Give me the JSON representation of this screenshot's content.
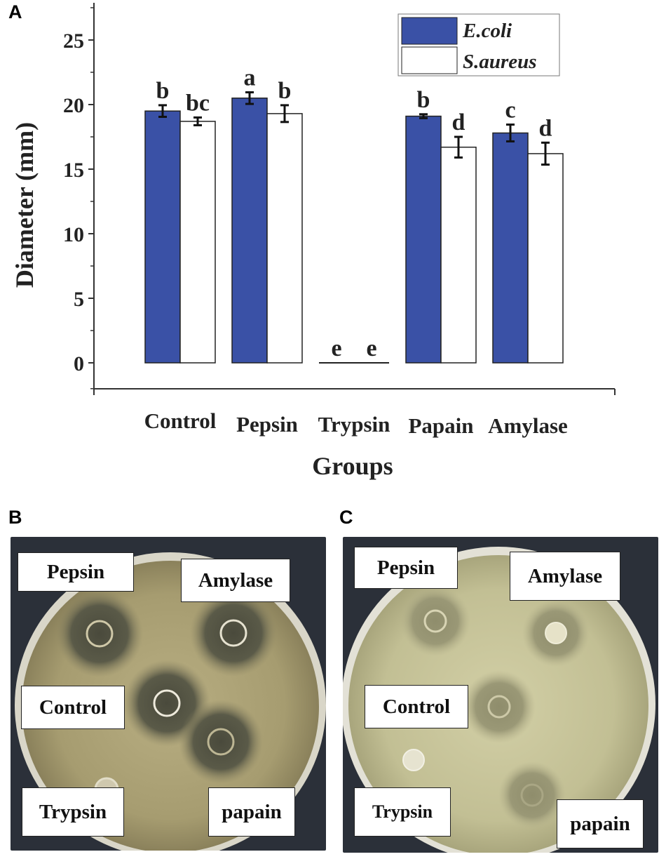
{
  "panels": {
    "a": "A",
    "b": "B",
    "c": "C"
  },
  "chart_data": {
    "type": "bar",
    "title": "",
    "xlabel": "Groups",
    "ylabel": "Diameter (mm)",
    "ylim": [
      -2,
      30
    ],
    "yticks": [
      0,
      5,
      10,
      15,
      20,
      25
    ],
    "grid": false,
    "legend_position": "top-right",
    "categories": [
      "Control",
      "Pepsin",
      "Trypsin",
      "Papain",
      "Amylase"
    ],
    "series": [
      {
        "name": "E.coli",
        "color": "#3a51a6",
        "values": [
          19.5,
          20.5,
          0,
          19.1,
          17.8
        ],
        "errors": [
          0.45,
          0.45,
          0,
          0.15,
          0.65
        ],
        "letters": [
          "b",
          "a",
          "e",
          "b",
          "c"
        ]
      },
      {
        "name": "S.aureus",
        "color": "#ffffff",
        "values": [
          18.7,
          19.3,
          0,
          16.7,
          16.2
        ],
        "errors": [
          0.3,
          0.65,
          0,
          0.8,
          0.85
        ],
        "letters": [
          "bc",
          "b",
          "e",
          "d",
          "d"
        ]
      }
    ]
  },
  "plates": {
    "b": {
      "labels": {
        "pepsin": "Pepsin",
        "amylase": "Amylase",
        "control": "Control",
        "trypsin": "Trypsin",
        "papain": "papain"
      }
    },
    "c": {
      "labels": {
        "pepsin": "Pepsin",
        "amylase": "Amylase",
        "control": "Control",
        "trypsin": "Trypsin",
        "papain": "papain"
      }
    }
  }
}
